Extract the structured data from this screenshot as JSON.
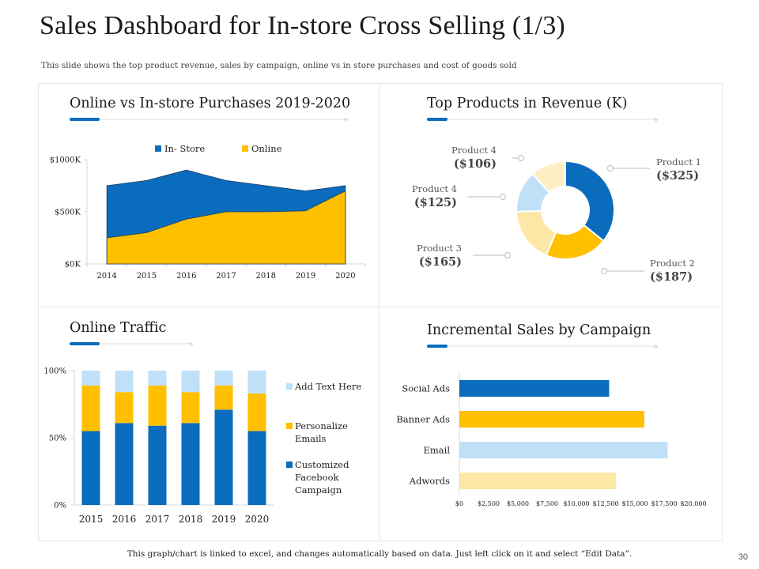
{
  "header": {
    "title": "Sales Dashboard for In-store Cross Selling (1/3)",
    "subtitle": "This slide shows the top product revenue, sales by campaign, online vs in store purchases and cost of goods sold"
  },
  "footer": {
    "note": "This graph/chart is linked to excel, and changes automatically based on data. Just left click on it and select “Edit Data”.",
    "page": "30"
  },
  "colors": {
    "blue": "#0a6cbd",
    "gold": "#ffc000",
    "light_blue": "#bfe0f7",
    "pale_yellow": "#fde7a6",
    "dark_accent": "#0a6cbd",
    "frame": "#e6e6e6"
  },
  "chart_data": [
    {
      "id": "area",
      "type": "area",
      "title": "Online vs In-store Purchases 2019-2020",
      "categories": [
        "2014",
        "2015",
        "2016",
        "2017",
        "2018",
        "2019",
        "2020"
      ],
      "ylim": [
        0,
        1000
      ],
      "yticks": [
        0,
        500,
        1000
      ],
      "ytick_labels": [
        "$0K",
        "$500K",
        "$1000K"
      ],
      "legend_position": "top",
      "series": [
        {
          "name": "In- Store",
          "values": [
            750,
            800,
            900,
            800,
            750,
            700,
            750
          ],
          "color": "#0a6cbd"
        },
        {
          "name": "Online",
          "values": [
            250,
            300,
            430,
            500,
            500,
            510,
            700
          ],
          "color": "#ffc000"
        }
      ]
    },
    {
      "id": "donut",
      "type": "pie",
      "title": "Top Products in Revenue (K)",
      "slices": [
        {
          "name": "Product 1",
          "value": 325,
          "label": "($325)",
          "color": "#0a6cbd"
        },
        {
          "name": "Product 2",
          "value": 187,
          "label": "($187)",
          "color": "#ffc000"
        },
        {
          "name": "Product 3",
          "value": 165,
          "label": "($165)",
          "color": "#fde7a6"
        },
        {
          "name": "Product 4",
          "value": 125,
          "label": "($125)",
          "color": "#bfe0f7"
        },
        {
          "name": "Product 4",
          "value": 106,
          "label": "($106)",
          "color": "#fdefc3"
        }
      ]
    },
    {
      "id": "traffic",
      "type": "bar",
      "stacked": true,
      "title": "Online Traffic",
      "categories": [
        "2015",
        "2016",
        "2017",
        "2018",
        "2019",
        "2020"
      ],
      "ylim": [
        0,
        100
      ],
      "yticks": [
        0,
        50,
        100
      ],
      "ytick_labels": [
        "0%",
        "50%",
        "100%"
      ],
      "legend_position": "right",
      "series": [
        {
          "name": "Customized Facebook Campaign",
          "values": [
            55,
            61,
            59,
            61,
            71,
            55
          ],
          "color": "#0a6cbd"
        },
        {
          "name": "Personalize Emails",
          "values": [
            34,
            23,
            30,
            23,
            18,
            28
          ],
          "color": "#ffc000"
        },
        {
          "name": "Add Text Here",
          "values": [
            11,
            16,
            11,
            16,
            11,
            17
          ],
          "color": "#bfe0f7"
        }
      ],
      "legend_lines": [
        [
          "Add Text Here"
        ],
        [
          "Personalize",
          "Emails"
        ],
        [
          "Customized",
          "Facebook",
          "Campaign"
        ]
      ]
    },
    {
      "id": "campaign",
      "type": "bar",
      "orientation": "horizontal",
      "title": "Incremental Sales by Campaign",
      "categories": [
        "Social Ads",
        "Banner Ads",
        "Email",
        "Adwords"
      ],
      "values": [
        12800,
        15800,
        17800,
        13400
      ],
      "colors": [
        "#0a6cbd",
        "#ffc000",
        "#bfe0f7",
        "#fde7a6"
      ],
      "xlim": [
        0,
        20000
      ],
      "xticks": [
        0,
        2500,
        5000,
        7500,
        10000,
        12500,
        15000,
        17500,
        20000
      ],
      "xtick_labels": [
        "$0",
        "$2,500",
        "$5,000",
        "$7,500",
        "$10,000",
        "$12,500",
        "$15,000",
        "$17,500",
        "$20,000"
      ]
    }
  ]
}
